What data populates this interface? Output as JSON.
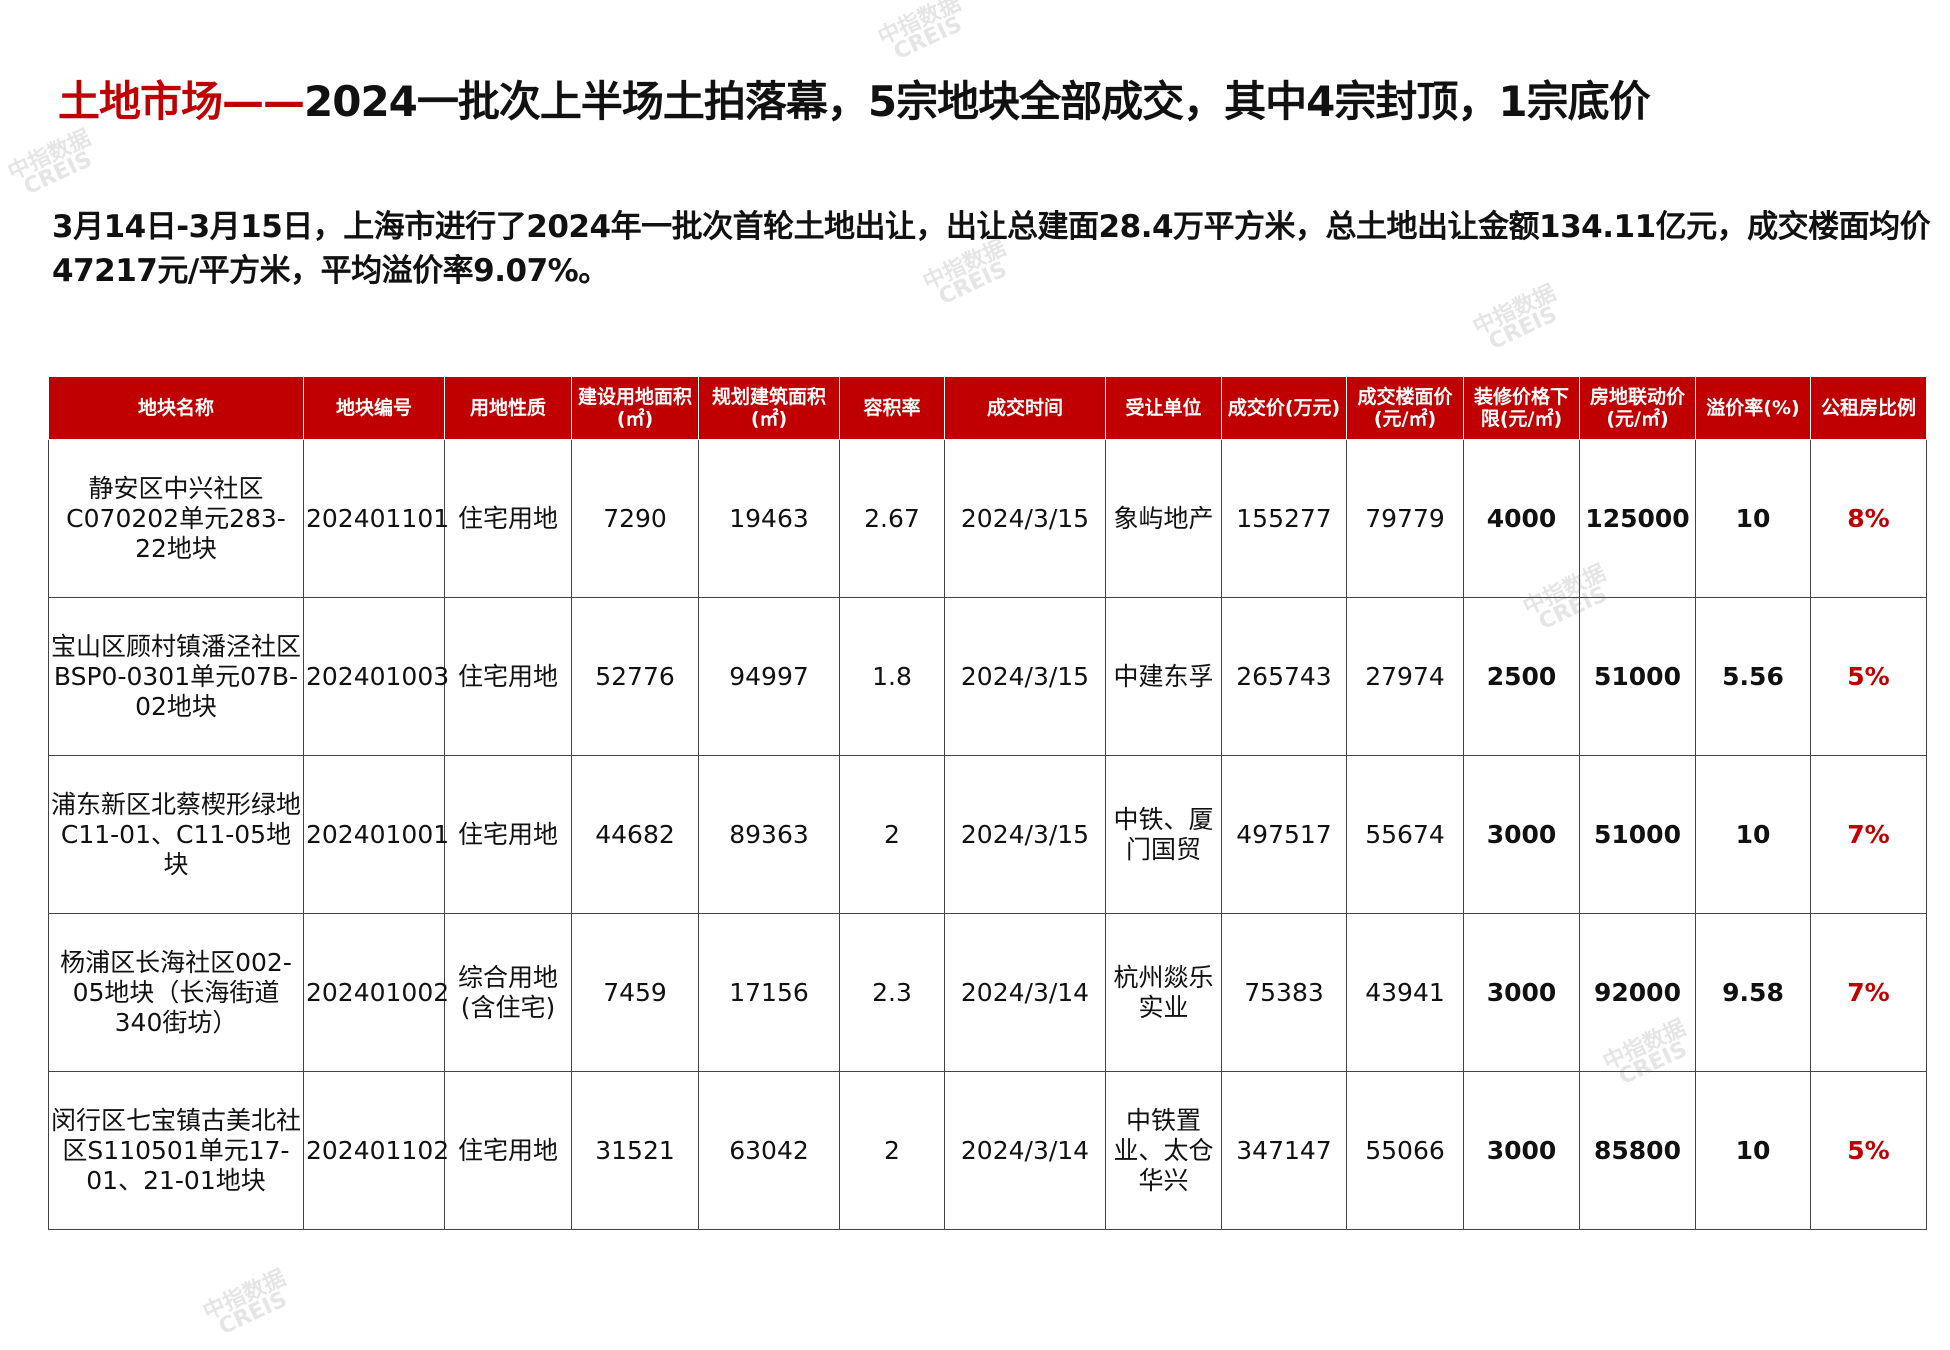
{
  "title": {
    "prefix": "土地市场——",
    "main": "2024一批次上半场土拍落幕，5宗地块全部成交，其中4宗封顶，1宗底价"
  },
  "summary": "3月14日-3月15日，上海市进行了2024年一批次首轮土地出让，出让总建面28.4万平方米，总土地出让金额134.11亿元，成交楼面均价47217元/平方米，平均溢价率9.07%。",
  "watermark": "中指数据 CREIS",
  "table": {
    "headers": [
      "地块名称",
      "地块编号",
      "用地性质",
      "建设用地面积(㎡)",
      "规划建筑面积(㎡)",
      "容积率",
      "成交时间",
      "受让单位",
      "成交价(万元)",
      "成交楼面价(元/㎡)",
      "装修价格下限(元/㎡)",
      "房地联动价(元/㎡)",
      "溢价率(%)",
      "公租房比例"
    ],
    "rows": [
      [
        "静安区中兴社区C070202单元283-22地块",
        "202401101",
        "住宅用地",
        "7290",
        "19463",
        "2.67",
        "2024/3/15",
        "象屿地产",
        "155277",
        "79779",
        "4000",
        "125000",
        "10",
        "8%"
      ],
      [
        "宝山区顾村镇潘泾社区BSP0-0301单元07B-02地块",
        "202401003",
        "住宅用地",
        "52776",
        "94997",
        "1.8",
        "2024/3/15",
        "中建东孚",
        "265743",
        "27974",
        "2500",
        "51000",
        "5.56",
        "5%"
      ],
      [
        "浦东新区北蔡楔形绿地C11-01、C11-05地块",
        "202401001",
        "住宅用地",
        "44682",
        "89363",
        "2",
        "2024/3/15",
        "中铁、厦门国贸",
        "497517",
        "55674",
        "3000",
        "51000",
        "10",
        "7%"
      ],
      [
        "杨浦区长海社区002-05地块（长海街道340街坊）",
        "202401002",
        "综合用地(含住宅)",
        "7459",
        "17156",
        "2.3",
        "2024/3/14",
        "杭州燚乐实业",
        "75383",
        "43941",
        "3000",
        "92000",
        "9.58",
        "7%"
      ],
      [
        "闵行区七宝镇古美北社区S110501单元17-01、21-01地块",
        "202401102",
        "住宅用地",
        "31521",
        "63042",
        "2",
        "2024/3/14",
        "中铁置业、太仓华兴",
        "347147",
        "55066",
        "3000",
        "85800",
        "10",
        "5%"
      ]
    ]
  }
}
